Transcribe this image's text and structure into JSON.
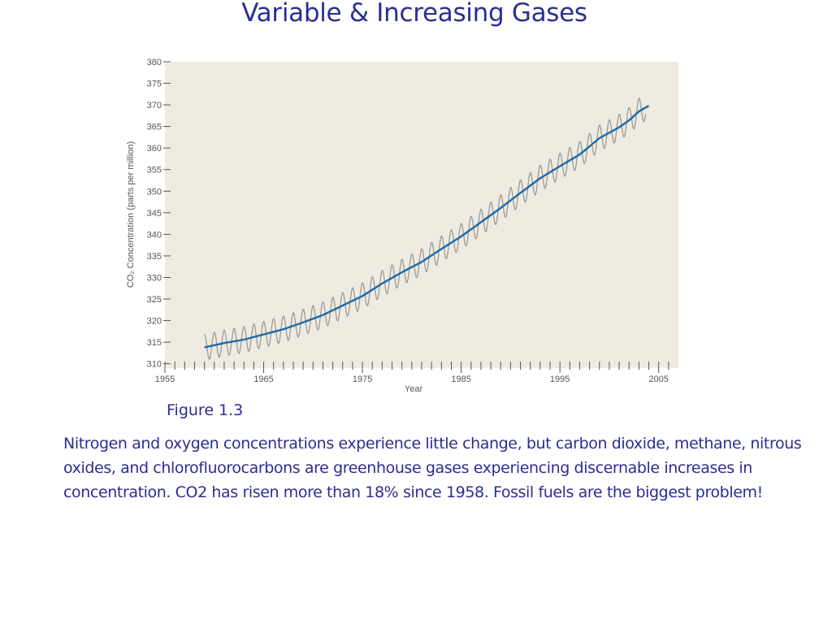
{
  "slide": {
    "title": "Variable & Increasing Gases",
    "caption": "Figure 1.3",
    "body": "Nitrogen and oxygen concentrations experience little change, but carbon dioxide, methane, nitrous oxides, and chlorofluorocarbons are greenhouse gases experiencing discernable increases in concentration.  CO2 has risen more than 18% since 1958.  Fossil fuels are the biggest problem!"
  },
  "colors": {
    "plot_background": "#efebe0",
    "trend_line": "#1a6aa8",
    "seasonal_line": "#9a9a9a",
    "text": "#2a2f8f"
  },
  "chart_data": {
    "type": "line",
    "title": "",
    "xlabel": "Year",
    "ylabel": "CO₂ Concentration (parts per million)",
    "xlim": [
      1955,
      2007
    ],
    "ylim": [
      309,
      380
    ],
    "x_ticks": [
      1955,
      1965,
      1975,
      1985,
      1995,
      2005
    ],
    "y_ticks": [
      310,
      315,
      320,
      325,
      330,
      335,
      340,
      345,
      350,
      355,
      360,
      365,
      370,
      375,
      380
    ],
    "grid": false,
    "legend": "none",
    "series": [
      {
        "role": "annual-trend",
        "x": [
          1959,
          1961,
          1963,
          1965,
          1967,
          1969,
          1971,
          1973,
          1975,
          1977,
          1979,
          1981,
          1983,
          1985,
          1987,
          1989,
          1991,
          1993,
          1995,
          1997,
          1999,
          2001,
          2002,
          2003,
          2004
        ],
        "y": [
          313.8,
          314.8,
          315.6,
          316.8,
          318.0,
          319.6,
          321.3,
          323.5,
          325.7,
          328.6,
          331.2,
          333.6,
          336.6,
          339.5,
          342.8,
          346.1,
          349.6,
          353.0,
          355.8,
          358.5,
          362.3,
          364.8,
          366.4,
          368.5,
          369.8
        ]
      },
      {
        "role": "monthly-seasonal",
        "seasonal_amplitude_ppm": 3.0
      }
    ]
  }
}
